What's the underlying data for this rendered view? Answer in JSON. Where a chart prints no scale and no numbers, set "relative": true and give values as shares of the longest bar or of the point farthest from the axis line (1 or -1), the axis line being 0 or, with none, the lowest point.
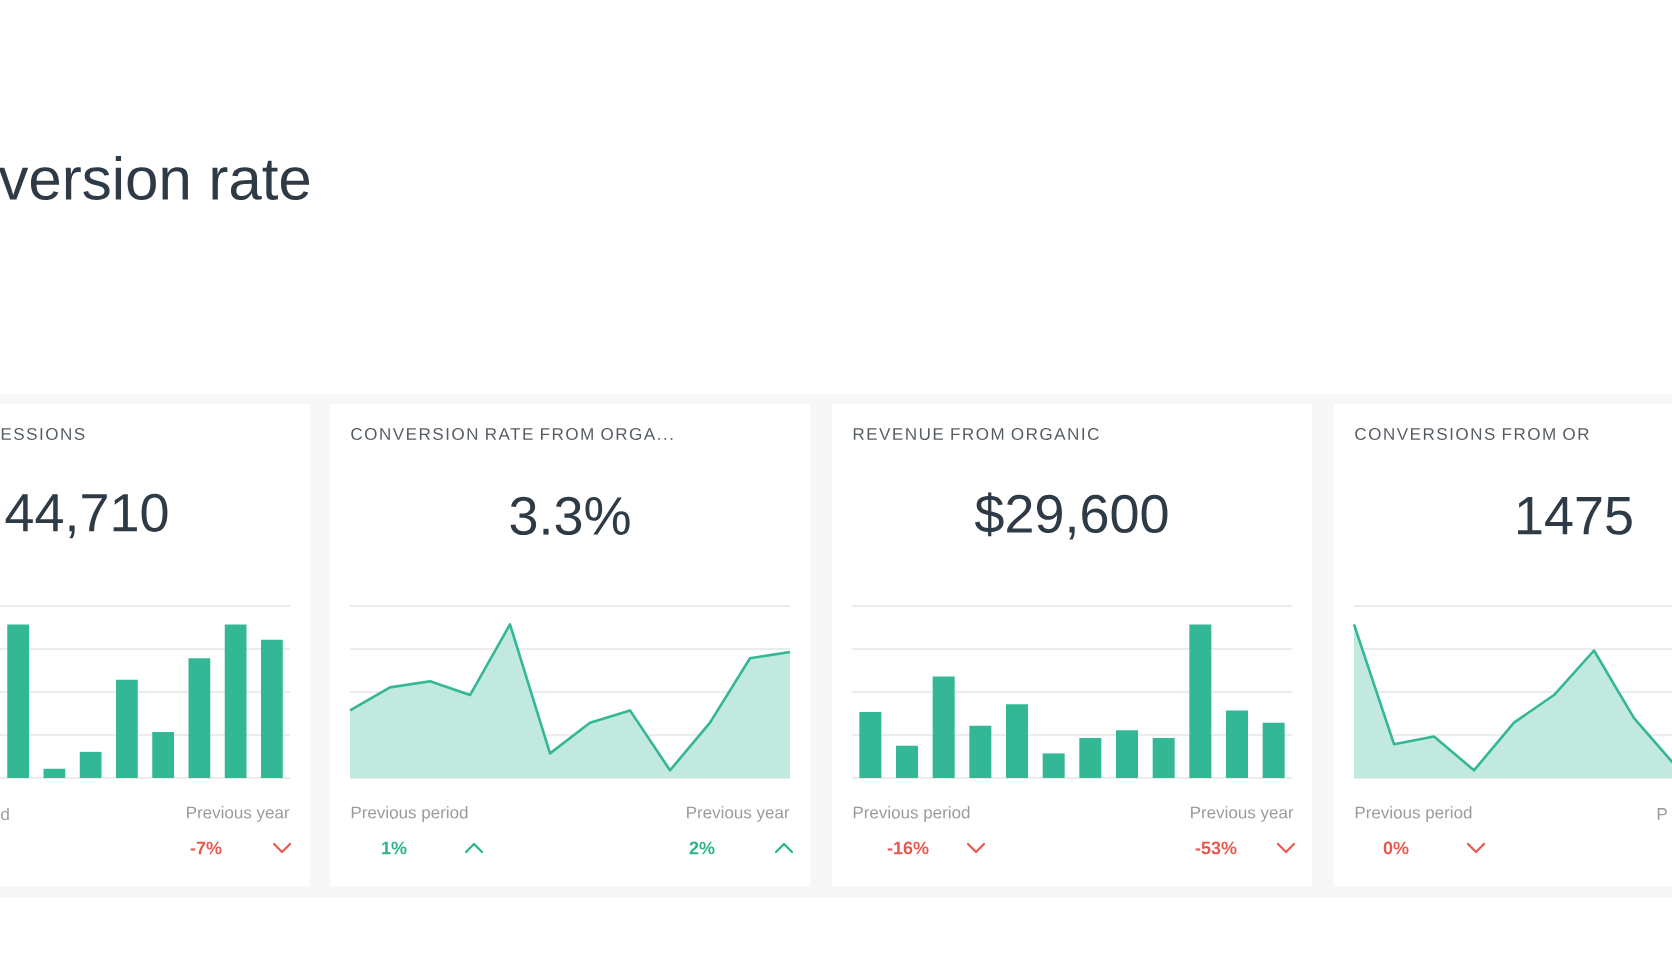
{
  "chart_data": [
    {
      "type": "bar",
      "title": "ESSIONS",
      "subtitle": "44,710",
      "relative": true,
      "grid": true,
      "color": "#33b795",
      "categories": [
        null,
        null,
        null,
        null,
        null,
        null,
        null,
        null
      ],
      "values": [
        1,
        0.06,
        0.17,
        0.64,
        0.3,
        0.78,
        1,
        0.9
      ],
      "annotations": [
        "version rate",
        "d",
        "Previous year",
        "-7%"
      ]
    },
    {
      "type": "area",
      "title": "CONVERSION RATE FROM ORGA...",
      "subtitle": "3.3%",
      "relative": true,
      "grid": true,
      "color": "#33b795",
      "categories": [
        null,
        null,
        null,
        null,
        null,
        null,
        null,
        null,
        null,
        null,
        null,
        null
      ],
      "values": [
        0.44,
        0.59,
        0.63,
        0.54,
        1,
        0.16,
        0.36,
        0.44,
        0.05,
        0.36,
        0.78,
        0.82
      ],
      "annotations": [
        "Previous period",
        "1%",
        "Previous year",
        "2%"
      ]
    },
    {
      "type": "bar",
      "title": "REVENUE FROM ORGANIC",
      "subtitle": "$29,600",
      "relative": true,
      "grid": true,
      "color": "#33b795",
      "categories": [
        null,
        null,
        null,
        null,
        null,
        null,
        null,
        null,
        null,
        null,
        null,
        null
      ],
      "values": [
        0.43,
        0.21,
        0.66,
        0.34,
        0.48,
        0.16,
        0.26,
        0.31,
        0.26,
        1,
        0.44,
        0.36
      ],
      "annotations": [
        "Previous period",
        "-16%",
        "Previous year",
        "-53%"
      ]
    },
    {
      "type": "area",
      "title": "CONVERSIONS FROM OR",
      "subtitle": "1475",
      "relative": true,
      "grid": true,
      "color": "#33b795",
      "categories": [
        null,
        null,
        null,
        null,
        null,
        null,
        null,
        null,
        null,
        null,
        null,
        null
      ],
      "values": [
        1,
        0.22,
        0.27,
        0.05,
        0.36,
        0.54,
        0.83,
        0.39,
        0.09,
        null,
        null,
        null
      ],
      "annotations": [
        "Previous period",
        "0%",
        "P"
      ]
    }
  ]
}
